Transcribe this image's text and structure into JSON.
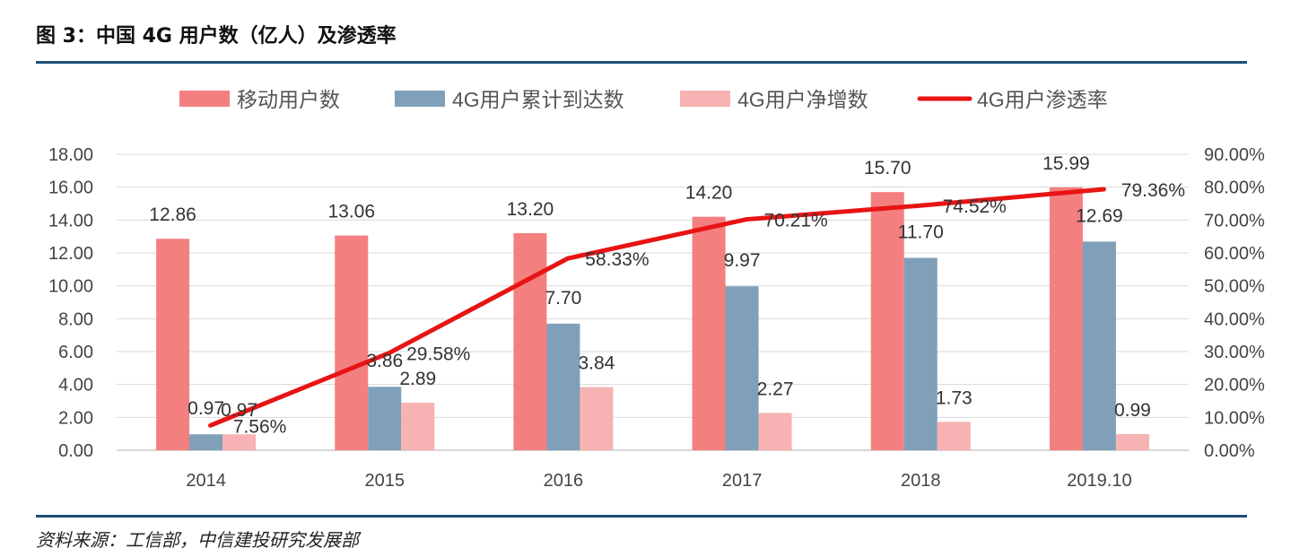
{
  "title": "图 3：中国 4G 用户数（亿人）及渗透率",
  "source": "资料来源：工信部，中信建投研究发展部",
  "colors": {
    "mobile": "#f47f7f",
    "cumulative": "#7fa0b8",
    "net_add": "#f7b3b3",
    "penetration": "#e81414",
    "rule": "#1f4e79"
  },
  "chart_data": {
    "type": "bar",
    "categories": [
      "2014",
      "2015",
      "2016",
      "2017",
      "2018",
      "2019.10"
    ],
    "series": [
      {
        "name": "移动用户数",
        "type": "bar",
        "axis": "left",
        "values": [
          12.86,
          13.06,
          13.2,
          14.2,
          15.7,
          15.99
        ],
        "labels": [
          "12.86",
          "13.06",
          "13.20",
          "14.20",
          "15.70",
          "15.99"
        ]
      },
      {
        "name": "4G用户累计到达数",
        "type": "bar",
        "axis": "left",
        "values": [
          0.97,
          3.86,
          7.7,
          9.97,
          11.7,
          12.69
        ],
        "labels": [
          "0.97",
          "3.86",
          "7.70",
          "9.97",
          "11.70",
          "12.69"
        ]
      },
      {
        "name": "4G用户净增数",
        "type": "bar",
        "axis": "left",
        "values": [
          0.97,
          2.89,
          3.84,
          2.27,
          1.73,
          0.99
        ],
        "labels": [
          "0.97",
          "2.89",
          "3.84",
          "2.27",
          "1.73",
          "0.99"
        ]
      },
      {
        "name": "4G用户渗透率",
        "type": "line",
        "axis": "right",
        "values": [
          7.56,
          29.58,
          58.33,
          70.21,
          74.52,
          79.36
        ],
        "labels": [
          "7.56%",
          "29.58%",
          "58.33%",
          "70.21%",
          "74.52%",
          "79.36%"
        ]
      }
    ],
    "ylim": [
      0,
      18
    ],
    "y2lim": [
      0,
      90
    ],
    "yticks": [
      "0.00",
      "2.00",
      "4.00",
      "6.00",
      "8.00",
      "10.00",
      "12.00",
      "14.00",
      "16.00",
      "18.00"
    ],
    "y2ticks": [
      "0.00%",
      "10.00%",
      "20.00%",
      "30.00%",
      "40.00%",
      "50.00%",
      "60.00%",
      "70.00%",
      "80.00%",
      "90.00%"
    ],
    "legend_position": "top",
    "grid": "horizontal"
  }
}
